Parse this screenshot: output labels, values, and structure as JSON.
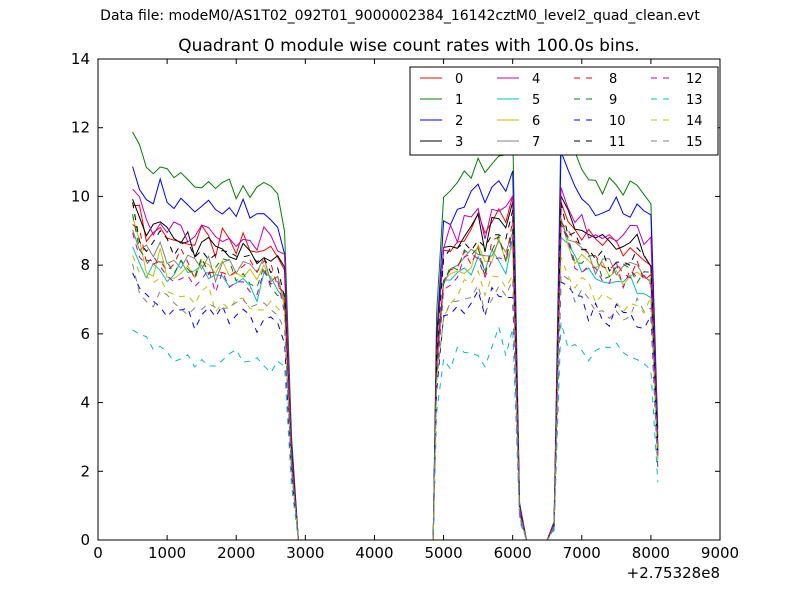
{
  "figure": {
    "suptitle": "Data file: modeM0/AS1T02_092T01_9000002384_16142cztM0_level2_quad_clean.evt"
  },
  "chart_data": {
    "type": "line",
    "title": "Quadrant 0 module wise count rates with 100.0s bins.",
    "xlabel": "",
    "ylabel": "",
    "x_offset_label": "+2.75328e8",
    "xlim": [
      0,
      9000
    ],
    "ylim": [
      0,
      14
    ],
    "xticks": [
      0,
      1000,
      2000,
      3000,
      4000,
      5000,
      6000,
      7000,
      8000,
      9000
    ],
    "yticks": [
      0,
      2,
      4,
      6,
      8,
      10,
      12,
      14
    ],
    "grid": false,
    "legend_placement": "top-right",
    "legend_columns": 4,
    "series": [
      {
        "name": "0",
        "color": "#ff0000",
        "dash": "solid",
        "level": 9.0
      },
      {
        "name": "1",
        "color": "#008000",
        "dash": "solid",
        "level": 10.8
      },
      {
        "name": "2",
        "color": "#0000ff",
        "dash": "solid",
        "level": 10.0
      },
      {
        "name": "3",
        "color": "#000000",
        "dash": "solid",
        "level": 9.0
      },
      {
        "name": "4",
        "color": "#bf00bf",
        "dash": "solid",
        "level": 9.3
      },
      {
        "name": "5",
        "color": "#00bfbf",
        "dash": "solid",
        "level": 7.9
      },
      {
        "name": "6",
        "color": "#bfbf00",
        "dash": "solid",
        "level": 8.1
      },
      {
        "name": "7",
        "color": "#808080",
        "dash": "solid",
        "level": 8.3
      },
      {
        "name": "8",
        "color": "#ff0000",
        "dash": "dashed",
        "level": 8.3
      },
      {
        "name": "9",
        "color": "#008000",
        "dash": "dashed",
        "level": 8.2
      },
      {
        "name": "10",
        "color": "#0000ff",
        "dash": "dashed",
        "level": 6.8
      },
      {
        "name": "11",
        "color": "#000000",
        "dash": "dashed",
        "level": 8.6
      },
      {
        "name": "12",
        "color": "#bf00bf",
        "dash": "dashed",
        "level": 8.0
      },
      {
        "name": "13",
        "color": "#00bfbf",
        "dash": "dashed",
        "level": 5.6
      },
      {
        "name": "14",
        "color": "#bfbf00",
        "dash": "dashed",
        "level": 7.4
      },
      {
        "name": "15",
        "color": "#808080",
        "dash": "dashed",
        "level": 7.1
      }
    ],
    "time_profile": {
      "x": [
        500,
        600,
        700,
        800,
        900,
        1000,
        1100,
        1200,
        1300,
        1400,
        1500,
        1600,
        1700,
        1800,
        1900,
        2000,
        2100,
        2200,
        2300,
        2400,
        2500,
        2600,
        2700,
        2800,
        2900,
        3000,
        3500,
        4000,
        4500,
        4850,
        4900,
        5000,
        5100,
        5200,
        5300,
        5400,
        5500,
        5600,
        5700,
        5800,
        5900,
        6000,
        6100,
        6200,
        6300,
        6400,
        6500,
        6600,
        6700,
        6800,
        6900,
        7000,
        7100,
        7200,
        7300,
        7400,
        7500,
        7600,
        7700,
        7800,
        7900,
        8000,
        8100
      ],
      "relative": [
        1.12,
        1.05,
        1.0,
        0.99,
        1.02,
        0.98,
        0.96,
        0.99,
        0.97,
        0.95,
        0.98,
        0.96,
        0.94,
        0.97,
        0.95,
        0.93,
        0.96,
        0.94,
        0.92,
        0.95,
        0.93,
        0.91,
        0.86,
        0.28,
        0.0,
        0.0,
        0.0,
        0.0,
        0.0,
        0.0,
        0.62,
        0.92,
        0.95,
        0.97,
        0.99,
        1.0,
        1.02,
        0.96,
        1.03,
        1.05,
        1.02,
        1.08,
        0.1,
        0.0,
        0.0,
        0.0,
        0.0,
        0.05,
        1.12,
        1.06,
        1.02,
        1.0,
        0.98,
        0.97,
        0.96,
        0.95,
        0.97,
        0.94,
        0.96,
        0.95,
        0.93,
        0.92,
        0.3
      ]
    },
    "legend_entries": [
      "0",
      "1",
      "2",
      "3",
      "4",
      "5",
      "6",
      "7",
      "8",
      "9",
      "10",
      "11",
      "12",
      "13",
      "14",
      "15"
    ]
  }
}
